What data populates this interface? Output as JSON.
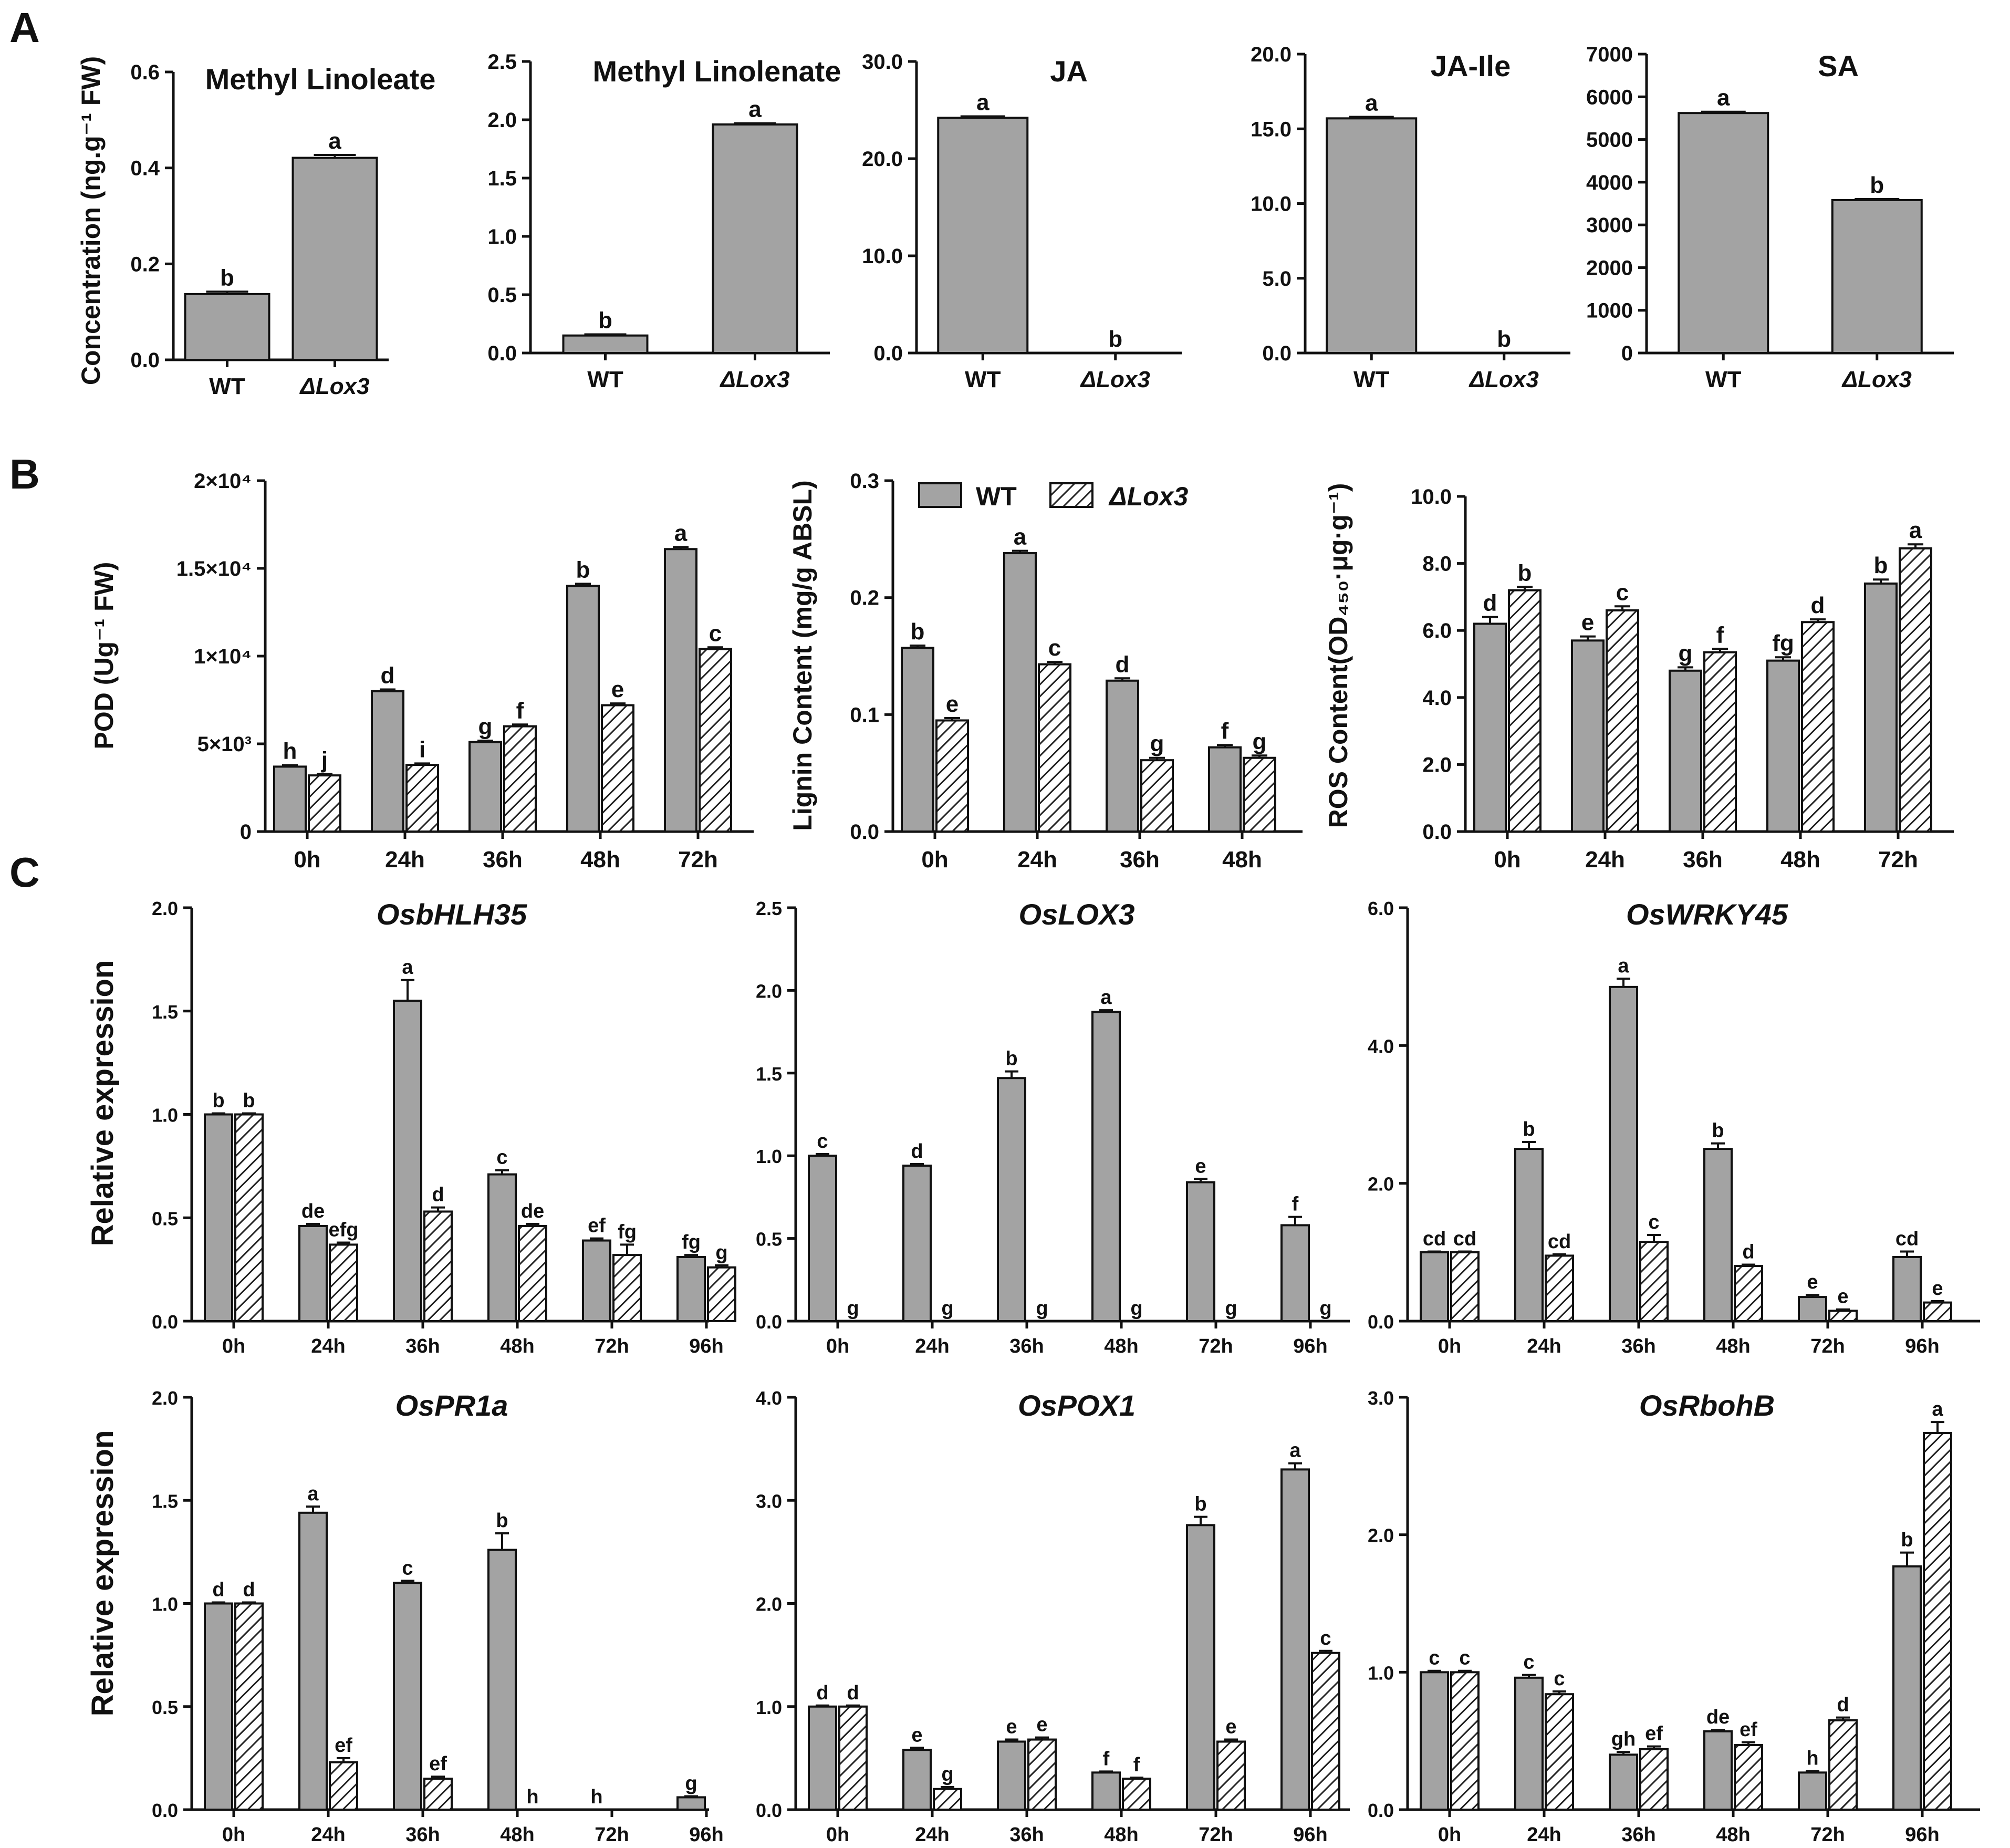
{
  "panel_labels": [
    "A",
    "B",
    "C"
  ],
  "legend": {
    "wt": "WT",
    "mutant": "ΔLox3"
  },
  "colors": {
    "wt_fill": "#a3a3a3",
    "stroke": "#111111",
    "hatch_bg": "#ffffff"
  },
  "chart_data": [
    {
      "id": "A1",
      "type": "bar",
      "panel": "A",
      "title": "Methyl Linoleate",
      "ylabel": "Concentration (ng.g⁻¹ FW)",
      "categories": [
        "WT",
        "ΔLox3"
      ],
      "values": [
        0.137,
        0.421
      ],
      "errors": [
        0.005,
        0.006
      ],
      "letters": [
        "b",
        "a"
      ],
      "ylim": [
        0,
        0.6
      ],
      "yticks": [
        0.0,
        0.2,
        0.4,
        0.6
      ],
      "ytick_labels": [
        "0.0",
        "0.2",
        "0.4",
        "0.6"
      ]
    },
    {
      "id": "A2",
      "type": "bar",
      "panel": "A",
      "title": "Methyl Linolenate",
      "categories": [
        "WT",
        "ΔLox3"
      ],
      "values": [
        0.15,
        1.96
      ],
      "errors": [
        0.01,
        0.01
      ],
      "letters": [
        "b",
        "a"
      ],
      "ylim": [
        0,
        2.5
      ],
      "yticks": [
        0,
        0.5,
        1.0,
        1.5,
        2.0,
        2.5
      ],
      "ytick_labels": [
        "0.0",
        "0.5",
        "1.0",
        "1.5",
        "2.0",
        "2.5"
      ]
    },
    {
      "id": "A3",
      "type": "bar",
      "panel": "A",
      "title": "JA",
      "categories": [
        "WT",
        "ΔLox3"
      ],
      "values": [
        24.2,
        0
      ],
      "errors": [
        0.15,
        0
      ],
      "letters": [
        "a",
        "b"
      ],
      "ylim": [
        0,
        30
      ],
      "yticks": [
        0,
        10,
        20,
        30
      ],
      "ytick_labels": [
        "0.0",
        "10.0",
        "20.0",
        "30.0"
      ]
    },
    {
      "id": "A4",
      "type": "bar",
      "panel": "A",
      "title": "JA-Ile",
      "categories": [
        "WT",
        "ΔLox3"
      ],
      "values": [
        15.7,
        0
      ],
      "errors": [
        0.1,
        0
      ],
      "letters": [
        "a",
        "b"
      ],
      "ylim": [
        0,
        20
      ],
      "yticks": [
        0,
        5,
        10,
        15,
        20
      ],
      "ytick_labels": [
        "0.0",
        "5.0",
        "10.0",
        "15.0",
        "20.0"
      ]
    },
    {
      "id": "A5",
      "type": "bar",
      "panel": "A",
      "title": "SA",
      "categories": [
        "WT",
        "ΔLox3"
      ],
      "values": [
        5620,
        3580
      ],
      "errors": [
        30,
        25
      ],
      "letters": [
        "a",
        "b"
      ],
      "ylim": [
        0,
        7000
      ],
      "yticks": [
        0,
        1000,
        2000,
        3000,
        4000,
        5000,
        6000,
        7000
      ],
      "ytick_labels": [
        "0",
        "1000",
        "2000",
        "3000",
        "4000",
        "5000",
        "6000",
        "7000"
      ]
    },
    {
      "id": "B1",
      "type": "bar",
      "panel": "B",
      "title": "",
      "ylabel": "POD (Ug⁻¹ FW)",
      "categories": [
        "0h",
        "24h",
        "36h",
        "48h",
        "72h"
      ],
      "series": [
        {
          "name": "WT",
          "values": [
            3700,
            8000,
            5100,
            14000,
            16100
          ],
          "errors": [
            80,
            100,
            80,
            120,
            120
          ],
          "letters": [
            "h",
            "d",
            "g",
            "b",
            "a"
          ]
        },
        {
          "name": "ΔLox3",
          "values": [
            3200,
            3800,
            6000,
            7200,
            10400
          ],
          "errors": [
            80,
            80,
            100,
            100,
            100
          ],
          "letters": [
            "j",
            "i",
            "f",
            "e",
            "c"
          ]
        }
      ],
      "ylim": [
        0,
        20000
      ],
      "yticks": [
        0,
        5000,
        10000,
        15000,
        20000
      ],
      "ytick_labels": [
        "0",
        "5×10³",
        "1×10⁴",
        "1.5×10⁴",
        "2×10⁴"
      ]
    },
    {
      "id": "B2",
      "type": "bar",
      "panel": "B",
      "title": "",
      "ylabel": "Lignin Content (mg/g ABSL)",
      "categories": [
        "0h",
        "24h",
        "36h",
        "48h"
      ],
      "series": [
        {
          "name": "WT",
          "values": [
            0.157,
            0.238,
            0.129,
            0.072
          ],
          "errors": [
            0.002,
            0.002,
            0.002,
            0.002
          ],
          "letters": [
            "b",
            "a",
            "d",
            "f"
          ]
        },
        {
          "name": "ΔLox3",
          "values": [
            0.095,
            0.143,
            0.061,
            0.063
          ],
          "errors": [
            0.002,
            0.002,
            0.002,
            0.002
          ],
          "letters": [
            "e",
            "c",
            "g",
            "g"
          ]
        }
      ],
      "ylim": [
        0,
        0.3
      ],
      "yticks": [
        0,
        0.1,
        0.2,
        0.3
      ],
      "ytick_labels": [
        "0.0",
        "0.1",
        "0.2",
        "0.3"
      ]
    },
    {
      "id": "B3",
      "type": "bar",
      "panel": "B",
      "title": "",
      "ylabel": "ROS Content(OD₄₅₀·μg·g⁻¹)",
      "categories": [
        "0h",
        "24h",
        "36h",
        "48h",
        "72h"
      ],
      "series": [
        {
          "name": "WT",
          "values": [
            6.2,
            5.7,
            4.8,
            5.1,
            7.4
          ],
          "errors": [
            0.2,
            0.12,
            0.1,
            0.1,
            0.12
          ],
          "letters": [
            "d",
            "e",
            "g",
            "fg",
            "b"
          ]
        },
        {
          "name": "ΔLox3",
          "values": [
            7.2,
            6.6,
            5.35,
            6.25,
            8.45
          ],
          "errors": [
            0.1,
            0.12,
            0.1,
            0.08,
            0.12
          ],
          "letters": [
            "b",
            "c",
            "f",
            "d",
            "a"
          ]
        }
      ],
      "ylim": [
        0,
        10
      ],
      "yticks": [
        0,
        2,
        4,
        6,
        8,
        10
      ],
      "ytick_labels": [
        "0.0",
        "2.0",
        "4.0",
        "6.0",
        "8.0",
        "10.0"
      ]
    },
    {
      "id": "C1",
      "type": "bar",
      "panel": "C",
      "title": "OsbHLH35",
      "ylabel": "Relative expression",
      "categories": [
        "0h",
        "24h",
        "36h",
        "48h",
        "72h",
        "96h"
      ],
      "series": [
        {
          "name": "WT",
          "values": [
            1.0,
            0.46,
            1.55,
            0.71,
            0.39,
            0.31
          ],
          "errors": [
            0.005,
            0.01,
            0.1,
            0.02,
            0.01,
            0.01
          ],
          "letters": [
            "b",
            "de",
            "a",
            "c",
            "ef",
            "fg"
          ]
        },
        {
          "name": "ΔLox3",
          "values": [
            1.0,
            0.37,
            0.53,
            0.46,
            0.32,
            0.26
          ],
          "errors": [
            0.005,
            0.01,
            0.02,
            0.01,
            0.05,
            0.01
          ],
          "letters": [
            "b",
            "efg",
            "d",
            "de",
            "fg",
            "g"
          ]
        }
      ],
      "ylim": [
        0,
        2.0
      ],
      "yticks": [
        0,
        0.5,
        1.0,
        1.5,
        2.0
      ],
      "ytick_labels": [
        "0.0",
        "0.5",
        "1.0",
        "1.5",
        "2.0"
      ]
    },
    {
      "id": "C2",
      "type": "bar",
      "panel": "C",
      "title": "OsLOX3",
      "categories": [
        "0h",
        "24h",
        "36h",
        "48h",
        "72h",
        "96h"
      ],
      "series": [
        {
          "name": "WT",
          "values": [
            1.0,
            0.94,
            1.47,
            1.87,
            0.84,
            0.58
          ],
          "errors": [
            0.01,
            0.01,
            0.04,
            0.01,
            0.02,
            0.05
          ],
          "letters": [
            "c",
            "d",
            "b",
            "a",
            "e",
            "f"
          ]
        },
        {
          "name": "ΔLox3",
          "values": [
            0,
            0,
            0,
            0,
            0,
            0
          ],
          "errors": [
            0,
            0,
            0,
            0,
            0,
            0
          ],
          "letters": [
            "g",
            "g",
            "g",
            "g",
            "g",
            "g"
          ]
        }
      ],
      "ylim": [
        0,
        2.5
      ],
      "yticks": [
        0,
        0.5,
        1.0,
        1.5,
        2.0,
        2.5
      ],
      "ytick_labels": [
        "0.0",
        "0.5",
        "1.0",
        "1.5",
        "2.0",
        "2.5"
      ]
    },
    {
      "id": "C3",
      "type": "bar",
      "panel": "C",
      "title": "OsWRKY45",
      "categories": [
        "0h",
        "24h",
        "36h",
        "48h",
        "72h",
        "96h"
      ],
      "series": [
        {
          "name": "WT",
          "values": [
            1.0,
            2.5,
            4.85,
            2.5,
            0.35,
            0.93
          ],
          "errors": [
            0.01,
            0.1,
            0.12,
            0.08,
            0.03,
            0.08
          ],
          "letters": [
            "cd",
            "b",
            "a",
            "b",
            "e",
            "cd"
          ]
        },
        {
          "name": "ΔLox3",
          "values": [
            1.0,
            0.95,
            1.15,
            0.8,
            0.15,
            0.27
          ],
          "errors": [
            0.01,
            0.02,
            0.1,
            0.02,
            0.02,
            0.02
          ],
          "letters": [
            "cd",
            "cd",
            "c",
            "d",
            "e",
            "e"
          ]
        }
      ],
      "ylim": [
        0,
        6.0
      ],
      "yticks": [
        0,
        2,
        4,
        6
      ],
      "ytick_labels": [
        "0.0",
        "2.0",
        "4.0",
        "6.0"
      ]
    },
    {
      "id": "C4",
      "type": "bar",
      "panel": "C",
      "title": "OsPR1a",
      "ylabel": "Relative expression",
      "categories": [
        "0h",
        "24h",
        "36h",
        "48h",
        "72h",
        "96h"
      ],
      "series": [
        {
          "name": "WT",
          "values": [
            1.0,
            1.44,
            1.1,
            1.26,
            0,
            0.06
          ],
          "errors": [
            0.005,
            0.03,
            0.01,
            0.08,
            0,
            0.005
          ],
          "letters": [
            "d",
            "a",
            "c",
            "b",
            "h",
            "g"
          ]
        },
        {
          "name": "ΔLox3",
          "values": [
            1.0,
            0.23,
            0.15,
            0,
            0,
            0
          ],
          "errors": [
            0.005,
            0.02,
            0.01,
            0,
            0,
            0
          ],
          "letters": [
            "d",
            "ef",
            "ef",
            "h",
            "",
            ""
          ]
        }
      ],
      "ylim": [
        0,
        2.0
      ],
      "yticks": [
        0,
        0.5,
        1.0,
        1.5,
        2.0
      ],
      "ytick_labels": [
        "0.0",
        "0.5",
        "1.0",
        "1.5",
        "2.0"
      ]
    },
    {
      "id": "C5",
      "type": "bar",
      "panel": "C",
      "title": "OsPOX1",
      "categories": [
        "0h",
        "24h",
        "36h",
        "48h",
        "72h",
        "96h"
      ],
      "series": [
        {
          "name": "WT",
          "values": [
            1.0,
            0.58,
            0.66,
            0.36,
            2.76,
            3.3
          ],
          "errors": [
            0.01,
            0.02,
            0.02,
            0.01,
            0.08,
            0.06
          ],
          "letters": [
            "d",
            "e",
            "e",
            "f",
            "b",
            "a"
          ]
        },
        {
          "name": "ΔLox3",
          "values": [
            1.0,
            0.2,
            0.68,
            0.3,
            0.66,
            1.52
          ],
          "errors": [
            0.01,
            0.02,
            0.02,
            0.01,
            0.02,
            0.02
          ],
          "letters": [
            "d",
            "g",
            "e",
            "f",
            "e",
            "c"
          ]
        }
      ],
      "ylim": [
        0,
        4.0
      ],
      "yticks": [
        0,
        1,
        2,
        3,
        4
      ],
      "ytick_labels": [
        "0.0",
        "1.0",
        "2.0",
        "3.0",
        "4.0"
      ]
    },
    {
      "id": "C6",
      "type": "bar",
      "panel": "C",
      "title": "OsRbohB",
      "categories": [
        "0h",
        "24h",
        "36h",
        "48h",
        "72h",
        "96h"
      ],
      "series": [
        {
          "name": "WT",
          "values": [
            1.0,
            0.96,
            0.4,
            0.57,
            0.27,
            1.77
          ],
          "errors": [
            0.01,
            0.02,
            0.02,
            0.01,
            0.01,
            0.1
          ],
          "letters": [
            "c",
            "c",
            "gh",
            "de",
            "h",
            "b"
          ]
        },
        {
          "name": "ΔLox3",
          "values": [
            1.0,
            0.84,
            0.44,
            0.47,
            0.65,
            2.74
          ],
          "errors": [
            0.01,
            0.02,
            0.02,
            0.02,
            0.02,
            0.08
          ],
          "letters": [
            "c",
            "c",
            "ef",
            "ef",
            "d",
            "a"
          ]
        }
      ],
      "ylim": [
        0,
        3.0
      ],
      "yticks": [
        0,
        1,
        2,
        3
      ],
      "ytick_labels": [
        "0.0",
        "1.0",
        "2.0",
        "3.0"
      ]
    }
  ]
}
